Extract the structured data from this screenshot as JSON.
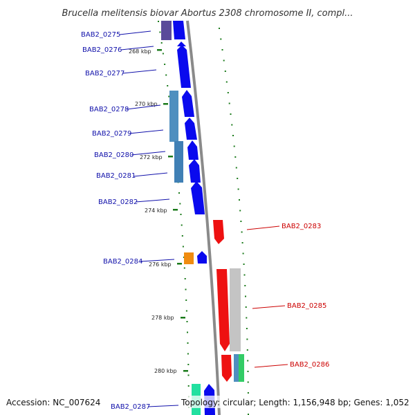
{
  "title": "Brucella melitensis biovar Abortus 2308 chromosome II, compl...",
  "footer": {
    "accession": "Accession: NC_007624",
    "summary": "Topology: circular; Length: 1,156,948 bp; Genes: 1,052"
  },
  "colors": {
    "backbone": "#8c8c8c",
    "minus_strand_gene": "#0a0aee",
    "plus_strand_gene": "#ee1111",
    "minus_label": "#1010aa",
    "plus_label": "#cc0000",
    "scale_ticks": "#1a7a1a",
    "cog_blue": "#4f8fbf",
    "cog_purple": "#5a4a9a",
    "cog_orange": "#f08c10",
    "cog_green": "#33cc66",
    "cog_grey": "#c4c4c4",
    "cog_teal": "#22e0a0"
  },
  "kbp_labels": [
    "268 kbp",
    "270 kbp",
    "272 kbp",
    "274 kbp",
    "276 kbp",
    "278 kbp",
    "280 kbp"
  ],
  "minus_genes": [
    "BAB2_0275",
    "BAB2_0276",
    "BAB2_0277",
    "BAB2_0278",
    "BAB2_0279",
    "BAB2_0280",
    "BAB2_0281",
    "BAB2_0282",
    "BAB2_0284",
    "BAB2_0287"
  ],
  "plus_genes": [
    "BAB2_0283",
    "BAB2_0285",
    "BAB2_0286"
  ]
}
